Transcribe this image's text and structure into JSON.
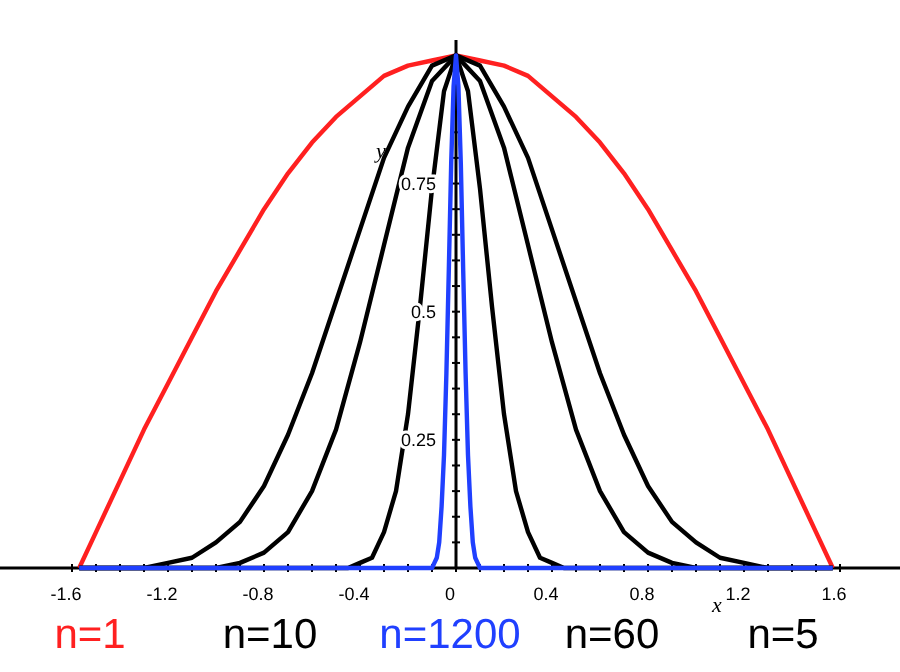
{
  "chart_data": {
    "type": "line",
    "xlabel": "x",
    "ylabel": "y",
    "xlim": [
      -1.9,
      1.85
    ],
    "ylim": [
      0,
      1.03
    ],
    "xticks": [
      -1.6,
      {
        "value": -1.5,
        "label": null
      },
      {
        "value": -1.4,
        "label": null
      },
      {
        "value": -1.3,
        "label": null
      },
      -1.2,
      {
        "value": -1.1,
        "label": null
      },
      {
        "value": -1.0,
        "label": null
      },
      {
        "value": -0.9,
        "label": null
      },
      -0.8,
      {
        "value": -0.7,
        "label": null
      },
      {
        "value": -0.6,
        "label": null
      },
      {
        "value": -0.5,
        "label": null
      },
      -0.4,
      {
        "value": -0.3,
        "label": null
      },
      {
        "value": -0.2,
        "label": null
      },
      {
        "value": -0.1,
        "label": null
      },
      0,
      {
        "value": 0.1,
        "label": null
      },
      {
        "value": 0.2,
        "label": null
      },
      {
        "value": 0.3,
        "label": null
      },
      0.4,
      {
        "value": 0.5,
        "label": null
      },
      {
        "value": 0.6,
        "label": null
      },
      {
        "value": 0.7,
        "label": null
      },
      0.8,
      {
        "value": 0.9,
        "label": null
      },
      {
        "value": 1.0,
        "label": null
      },
      {
        "value": 1.1,
        "label": null
      },
      1.2,
      {
        "value": 1.3,
        "label": null
      },
      {
        "value": 1.4,
        "label": null
      },
      {
        "value": 1.5,
        "label": null
      },
      1.6
    ],
    "yticks": [
      {
        "value": 0.05,
        "label": null
      },
      {
        "value": 0.1,
        "label": null
      },
      {
        "value": 0.15,
        "label": null
      },
      {
        "value": 0.2,
        "label": null
      },
      0.25,
      {
        "value": 0.3,
        "label": null
      },
      {
        "value": 0.35,
        "label": null
      },
      {
        "value": 0.4,
        "label": null
      },
      {
        "value": 0.45,
        "label": null
      },
      0.5,
      {
        "value": 0.55,
        "label": null
      },
      {
        "value": 0.6,
        "label": null
      },
      {
        "value": 0.65,
        "label": null
      },
      {
        "value": 0.7,
        "label": null
      },
      0.75,
      {
        "value": 0.8,
        "label": null
      },
      {
        "value": 0.85,
        "label": null
      },
      {
        "value": 0.9,
        "label": null
      },
      {
        "value": 0.95,
        "label": null
      }
    ],
    "grid": false,
    "legend": "bottom",
    "marker": "none",
    "line_style": "solid",
    "series": [
      {
        "name": "n=1",
        "color": "#ff2020",
        "x": [
          -1.57,
          -1.5,
          -1.4,
          -1.3,
          -1.2,
          -1.1,
          -1.0,
          -0.9,
          -0.8,
          -0.7,
          -0.6,
          -0.5,
          -0.4,
          -0.3,
          -0.2,
          -0.1,
          0,
          0.1,
          0.2,
          0.3,
          0.4,
          0.5,
          0.6,
          0.7,
          0.8,
          0.9,
          1.0,
          1.1,
          1.2,
          1.3,
          1.4,
          1.5,
          1.57
        ],
        "values": [
          0,
          0.07,
          0.17,
          0.27,
          0.36,
          0.45,
          0.54,
          0.62,
          0.7,
          0.77,
          0.83,
          0.88,
          0.92,
          0.96,
          0.98,
          0.99,
          1,
          0.99,
          0.98,
          0.96,
          0.92,
          0.88,
          0.83,
          0.77,
          0.7,
          0.62,
          0.54,
          0.45,
          0.36,
          0.27,
          0.17,
          0.07,
          0
        ]
      },
      {
        "name": "n=5",
        "color": "#000000",
        "x": [
          -1.57,
          -1.5,
          -1.4,
          -1.3,
          -1.2,
          -1.1,
          -1.0,
          -0.9,
          -0.8,
          -0.7,
          -0.6,
          -0.5,
          -0.4,
          -0.3,
          -0.2,
          -0.1,
          0,
          0.1,
          0.2,
          0.3,
          0.4,
          0.5,
          0.6,
          0.7,
          0.8,
          0.9,
          1.0,
          1.1,
          1.2,
          1.3,
          1.4,
          1.5,
          1.57
        ],
        "values": [
          0,
          0,
          0,
          0,
          0.01,
          0.02,
          0.05,
          0.09,
          0.16,
          0.26,
          0.38,
          0.52,
          0.66,
          0.8,
          0.9,
          0.98,
          1,
          0.98,
          0.9,
          0.8,
          0.66,
          0.52,
          0.38,
          0.26,
          0.16,
          0.09,
          0.05,
          0.02,
          0.01,
          0,
          0,
          0,
          0
        ]
      },
      {
        "name": "n=10",
        "color": "#000000",
        "x": [
          -1.57,
          -1.2,
          -1.1,
          -1.0,
          -0.9,
          -0.8,
          -0.7,
          -0.6,
          -0.5,
          -0.4,
          -0.3,
          -0.2,
          -0.1,
          0,
          0.1,
          0.2,
          0.3,
          0.4,
          0.5,
          0.6,
          0.7,
          0.8,
          0.9,
          1.0,
          1.1,
          1.2,
          1.57
        ],
        "values": [
          0,
          0,
          0,
          0,
          0.01,
          0.03,
          0.07,
          0.15,
          0.27,
          0.44,
          0.63,
          0.82,
          0.95,
          1,
          0.95,
          0.82,
          0.63,
          0.44,
          0.27,
          0.15,
          0.07,
          0.03,
          0.01,
          0,
          0,
          0,
          0
        ]
      },
      {
        "name": "n=60",
        "color": "#000000",
        "x": [
          -1.57,
          -0.5,
          -0.45,
          -0.4,
          -0.35,
          -0.3,
          -0.25,
          -0.2,
          -0.15,
          -0.1,
          -0.05,
          0,
          0.05,
          0.1,
          0.15,
          0.2,
          0.25,
          0.3,
          0.35,
          0.4,
          0.45,
          0.5,
          1.57
        ],
        "values": [
          0,
          0,
          0,
          0.01,
          0.02,
          0.07,
          0.15,
          0.3,
          0.51,
          0.74,
          0.93,
          1,
          0.93,
          0.74,
          0.51,
          0.3,
          0.15,
          0.07,
          0.02,
          0.01,
          0,
          0,
          0
        ]
      },
      {
        "name": "n=1200",
        "color": "#2040ff",
        "x": [
          -1.57,
          -0.12,
          -0.1,
          -0.09,
          -0.08,
          -0.07,
          -0.06,
          -0.05,
          -0.04,
          -0.03,
          -0.02,
          -0.01,
          0,
          0.01,
          0.02,
          0.03,
          0.04,
          0.05,
          0.06,
          0.07,
          0.08,
          0.09,
          0.1,
          0.12,
          1.57
        ],
        "values": [
          0,
          0,
          0,
          0.01,
          0.02,
          0.05,
          0.12,
          0.22,
          0.38,
          0.58,
          0.79,
          0.94,
          1,
          0.94,
          0.79,
          0.58,
          0.38,
          0.22,
          0.12,
          0.05,
          0.02,
          0.01,
          0,
          0,
          0
        ]
      }
    ]
  }
}
